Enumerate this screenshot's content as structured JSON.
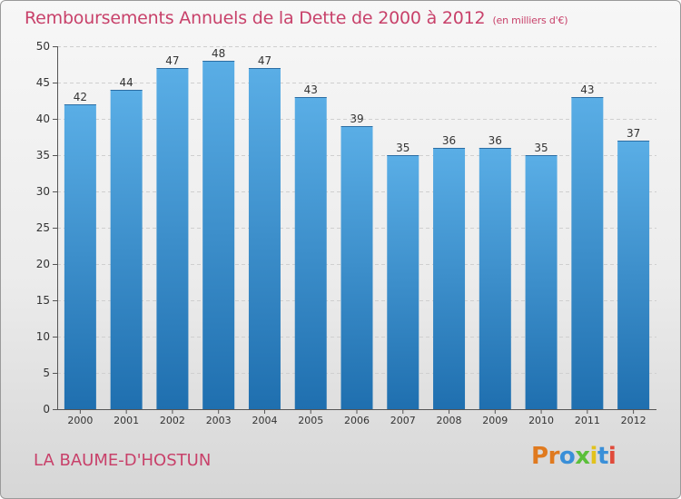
{
  "header": {
    "title": "Remboursements Annuels de la Dette de 2000 à 2012",
    "unit": "(en milliers d'€)"
  },
  "footer": {
    "commune": "LA BAUME-D'HOSTUN",
    "logo_text": "Proxiti"
  },
  "colors": {
    "title": "#c8416a",
    "bar_top": "#5aaee6",
    "bar_bottom": "#1f6faf",
    "logo_letters": [
      "#e07a1f",
      "#e07a1f",
      "#3a8fd8",
      "#5bbf3a",
      "#e2c21c",
      "#3a8fd8",
      "#e04a3a"
    ]
  },
  "chart_data": {
    "type": "bar",
    "title": "Remboursements Annuels de la Dette de 2000 à 2012",
    "xlabel": "",
    "ylabel": "",
    "categories": [
      "2000",
      "2001",
      "2002",
      "2003",
      "2004",
      "2005",
      "2006",
      "2007",
      "2008",
      "2009",
      "2010",
      "2011",
      "2012"
    ],
    "values": [
      42,
      44,
      47,
      48,
      47,
      43,
      39,
      35,
      36,
      36,
      35,
      43,
      37
    ],
    "ylim": [
      0,
      50
    ],
    "yticks": [
      0,
      5,
      10,
      15,
      20,
      25,
      30,
      35,
      40,
      45,
      50
    ],
    "grid": true
  }
}
